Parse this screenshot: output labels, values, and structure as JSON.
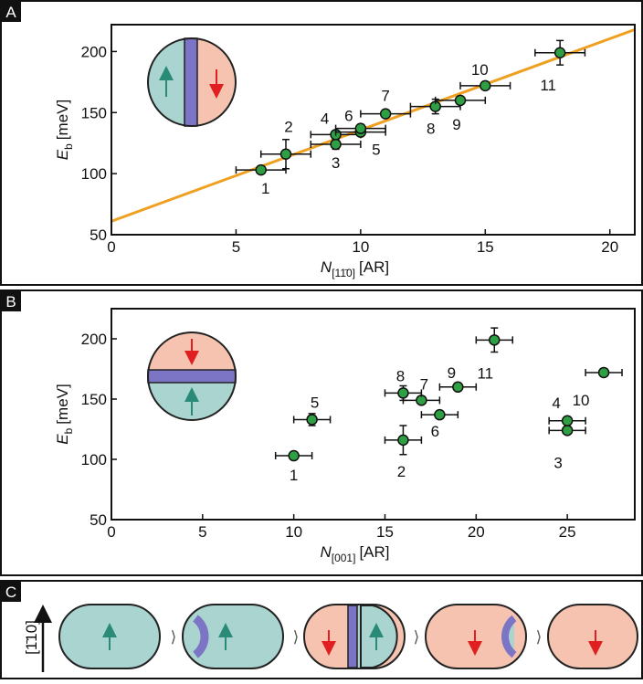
{
  "chart_data": [
    {
      "type": "scatter",
      "panel": "A",
      "y_label": {
        "symbol": "E",
        "subscript": "b",
        "unit": "[meV]"
      },
      "x_label": {
        "symbol": "N",
        "subscript": "[11̄0]",
        "unit": "[AR]"
      },
      "x": [
        6,
        7,
        9,
        9,
        10,
        10,
        11,
        13,
        14,
        15,
        18
      ],
      "values": [
        103,
        116,
        124,
        132,
        134,
        137,
        149,
        155,
        160,
        172,
        199
      ],
      "xerr": [
        1,
        1,
        1,
        1,
        1,
        1,
        1,
        1,
        1,
        1,
        1
      ],
      "yerr": [
        3,
        12,
        4,
        3,
        3,
        3,
        3,
        6,
        3,
        3,
        10
      ],
      "point_labels": [
        "1",
        "2",
        "3",
        "4",
        "5",
        "6",
        "7",
        "8",
        "9",
        "10",
        "11"
      ],
      "color": "#2ea043",
      "fit": {
        "x": [
          0,
          21
        ],
        "y": [
          61,
          218
        ],
        "color": "#f0a020"
      },
      "xlim": [
        0,
        21
      ],
      "ylim": [
        50,
        222
      ],
      "xticks": [
        0,
        5,
        10,
        15,
        20
      ],
      "yticks": [
        50,
        100,
        150,
        200
      ]
    },
    {
      "type": "scatter",
      "panel": "B",
      "y_label": {
        "symbol": "E",
        "subscript": "b",
        "unit": "[meV]"
      },
      "x_label": {
        "symbol": "N",
        "subscript": "[001]",
        "unit": "[AR]"
      },
      "x": [
        10,
        16,
        25,
        25,
        11,
        18,
        17,
        16,
        19,
        27,
        21
      ],
      "values": [
        103,
        116,
        124,
        132,
        133,
        137,
        149,
        155,
        160,
        172,
        199
      ],
      "xerr": [
        1,
        1,
        1,
        1,
        1,
        1,
        1,
        1,
        1,
        1,
        1
      ],
      "yerr": [
        3,
        12,
        3,
        3,
        5,
        3,
        3,
        6,
        3,
        3,
        10
      ],
      "point_labels": [
        "1",
        "2",
        "3",
        "4",
        "5",
        "6",
        "7",
        "8",
        "9",
        "10",
        "11"
      ],
      "color": "#2ea043",
      "xlim": [
        0,
        28.7
      ],
      "ylim": [
        50,
        225
      ],
      "xticks": [
        0,
        5,
        10,
        15,
        20,
        25
      ],
      "yticks": [
        50,
        100,
        150,
        200
      ]
    }
  ],
  "panel_c": {
    "panel": "C",
    "axis_label": "[1̄10]"
  }
}
